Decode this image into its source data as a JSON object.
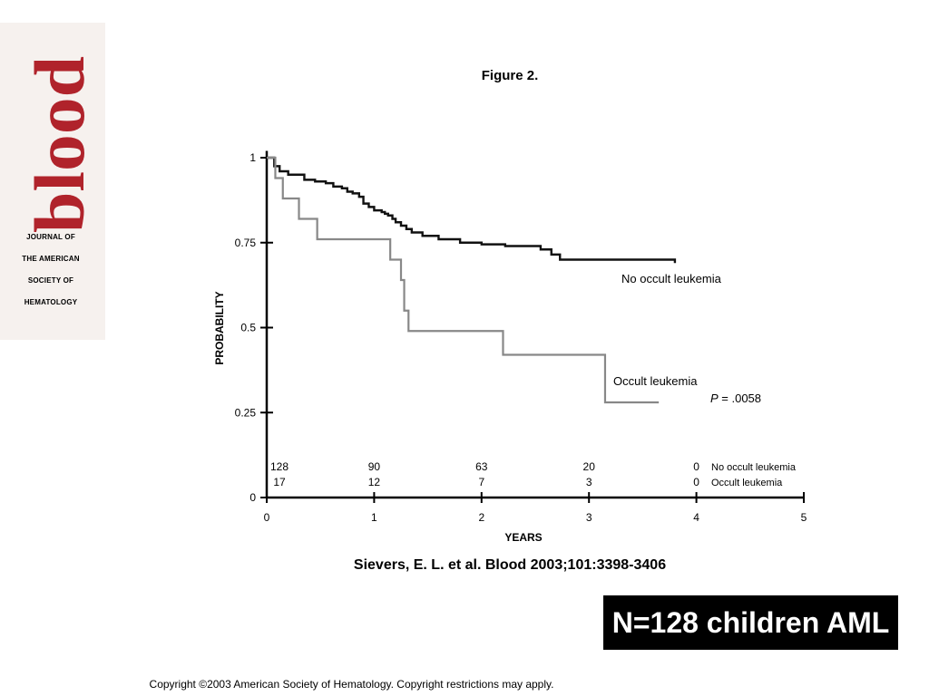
{
  "journal": {
    "logo_text": "blood",
    "lines": [
      "JOURNAL OF",
      "THE AMERICAN",
      "SOCIETY OF",
      "HEMATOLOGY"
    ],
    "brand_color": "#b0232b"
  },
  "figure_title": "Figure 2.",
  "citation": "Sievers, E. L. et al. Blood 2003;101:3398-3406",
  "banner": "N=128 children AML",
  "copyright": "Copyright ©2003 American Society of Hematology.  Copyright restrictions may apply.",
  "chart_data": {
    "type": "line",
    "step": true,
    "xlabel": "YEARS",
    "ylabel": "PROBABILITY",
    "xlim": [
      0,
      5
    ],
    "ylim": [
      0,
      1
    ],
    "x_ticks": [
      "0",
      "1",
      "2",
      "3",
      "4",
      "5"
    ],
    "y_ticks": [
      "0",
      "0.25",
      "0.5",
      "0.75",
      "1"
    ],
    "grid": false,
    "series": [
      {
        "name": "No occult leukemia",
        "color": "#111111",
        "x": [
          0,
          0.07,
          0.12,
          0.2,
          0.35,
          0.45,
          0.55,
          0.62,
          0.7,
          0.75,
          0.8,
          0.86,
          0.9,
          0.95,
          1.0,
          1.07,
          1.1,
          1.13,
          1.17,
          1.2,
          1.25,
          1.3,
          1.35,
          1.45,
          1.6,
          1.8,
          2.0,
          2.22,
          2.55,
          2.65,
          2.73,
          3.8
        ],
        "y": [
          1.0,
          0.975,
          0.96,
          0.95,
          0.935,
          0.93,
          0.925,
          0.915,
          0.91,
          0.9,
          0.895,
          0.885,
          0.865,
          0.855,
          0.845,
          0.84,
          0.835,
          0.83,
          0.82,
          0.81,
          0.8,
          0.79,
          0.78,
          0.77,
          0.76,
          0.75,
          0.745,
          0.74,
          0.73,
          0.715,
          0.7,
          0.69
        ]
      },
      {
        "name": "Occult leukemia",
        "color": "#888888",
        "x": [
          0,
          0.08,
          0.15,
          0.3,
          0.47,
          1.15,
          1.25,
          1.28,
          1.32,
          2.2,
          3.15,
          3.65
        ],
        "y": [
          1.0,
          0.94,
          0.88,
          0.82,
          0.76,
          0.7,
          0.64,
          0.55,
          0.49,
          0.42,
          0.28,
          0.28
        ]
      }
    ],
    "annotations": [
      {
        "text": "No occult leukemia",
        "series": 0
      },
      {
        "text": "Occult leukemia",
        "series": 1
      },
      {
        "text_italic": "P",
        "text": " = .0058"
      }
    ],
    "at_risk": {
      "times": [
        0,
        1,
        2,
        3,
        4
      ],
      "rows": [
        {
          "label": "No occult leukemia",
          "counts": [
            "128",
            "90",
            "63",
            "20",
            "0"
          ]
        },
        {
          "label": "Occult leukemia",
          "counts": [
            "17",
            "12",
            "7",
            "3",
            "0"
          ]
        }
      ]
    }
  }
}
